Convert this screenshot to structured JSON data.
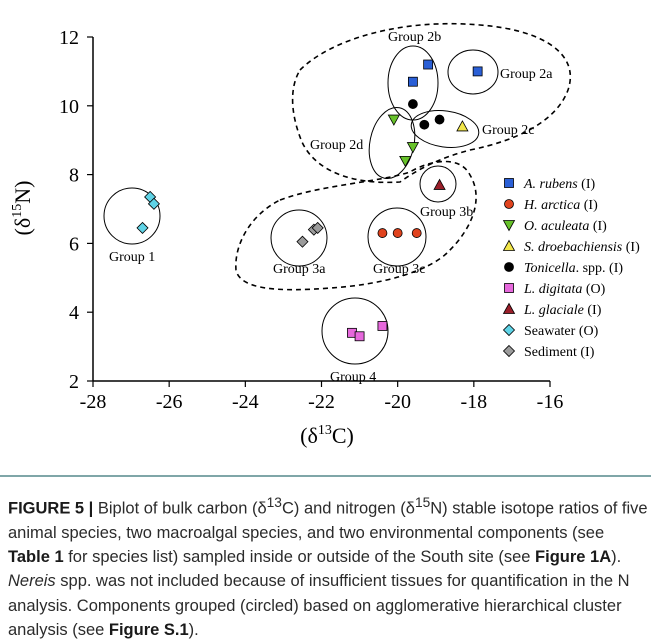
{
  "chart_data": {
    "type": "scatter",
    "xlabel_main": "δ",
    "xlabel_sup": "13",
    "xlabel_elem": "C",
    "ylabel_main": "δ",
    "ylabel_sup": "15",
    "ylabel_elem": "N",
    "xlim": [
      -28,
      -16
    ],
    "ylim": [
      2,
      12
    ],
    "x_ticks": [
      "-28",
      "-26",
      "-24",
      "-22",
      "-20",
      "-18",
      "-16"
    ],
    "y_ticks": [
      "2",
      "4",
      "6",
      "8",
      "10",
      "12"
    ],
    "series": [
      {
        "name": "A. rubens",
        "suffix": " (I)",
        "marker": "square",
        "color": "#2a5fd6",
        "points": [
          [
            -19.6,
            10.7
          ],
          [
            -19.2,
            11.2
          ],
          [
            -17.9,
            11.0
          ]
        ]
      },
      {
        "name": "H. arctica",
        "suffix": " (I)",
        "marker": "circle",
        "color": "#e0431e",
        "points": [
          [
            -20.4,
            6.3
          ],
          [
            -20.0,
            6.3
          ],
          [
            -19.5,
            6.3
          ]
        ]
      },
      {
        "name": "O. aculeata",
        "suffix": " (I)",
        "marker": "triangle-down",
        "color": "#67c22a",
        "points": [
          [
            -20.1,
            9.6
          ],
          [
            -19.6,
            8.8
          ],
          [
            -19.8,
            8.4
          ]
        ]
      },
      {
        "name": "S. droebachiensis",
        "suffix": " (I)",
        "marker": "triangle-up",
        "color": "#f2e64a",
        "points": [
          [
            -18.3,
            9.4
          ]
        ]
      },
      {
        "name": "Tonicella",
        "suffix": ". spp. (I)",
        "marker": "circle",
        "color": "#000000",
        "points": [
          [
            -19.6,
            10.05
          ],
          [
            -19.3,
            9.45
          ],
          [
            -18.9,
            9.6
          ]
        ]
      },
      {
        "name": "L. digitata",
        "suffix": " (O)",
        "marker": "square",
        "color": "#e668dc",
        "points": [
          [
            -21.2,
            3.4
          ],
          [
            -21.0,
            3.3
          ],
          [
            -20.4,
            3.6
          ]
        ]
      },
      {
        "name": "L. glaciale",
        "suffix": " (I)",
        "marker": "triangle-up",
        "color": "#9a1f2a",
        "points": [
          [
            -18.9,
            7.7
          ]
        ]
      },
      {
        "name": "Seawater",
        "suffix": " (O)",
        "marker": "diamond",
        "color": "#5fd3e6",
        "points": [
          [
            -26.5,
            7.35
          ],
          [
            -26.4,
            7.15
          ],
          [
            -26.7,
            6.45
          ]
        ]
      },
      {
        "name": "Sediment",
        "suffix": " (I)",
        "marker": "diamond",
        "color": "#9b9b9b",
        "points": [
          [
            -22.5,
            6.05
          ],
          [
            -22.2,
            6.4
          ],
          [
            -22.1,
            6.45
          ]
        ]
      }
    ],
    "groups": [
      {
        "label": "Group 1"
      },
      {
        "label": "Group 2a"
      },
      {
        "label": "Group 2b"
      },
      {
        "label": "Group 2c"
      },
      {
        "label": "Group 2d"
      },
      {
        "label": "Group 3a"
      },
      {
        "label": "Group 3b"
      },
      {
        "label": "Group 3c"
      },
      {
        "label": "Group 4"
      }
    ],
    "legend_position": "right"
  },
  "caption": {
    "figure_label": "FIGURE 5 |",
    "t1": " Biplot of bulk carbon (δ",
    "s1": "13",
    "t2": "C) and nitrogen (δ",
    "s2": "15",
    "t3": "N) stable isotope ratios of five animal species, two macroalgal species, and two environmental components (see ",
    "ref1": "Table 1",
    "t4": " for species list) sampled inside or outside of the South site (see ",
    "ref2": "Figure 1A",
    "t5": "). ",
    "italic1": "Nereis",
    "t6": " spp. was not included because of insufficient tissues for quantification in the N analysis. Components grouped (circled) based on agglomerative hierarchical cluster analysis (see ",
    "ref3": "Figure S.1",
    "t7": ")."
  }
}
